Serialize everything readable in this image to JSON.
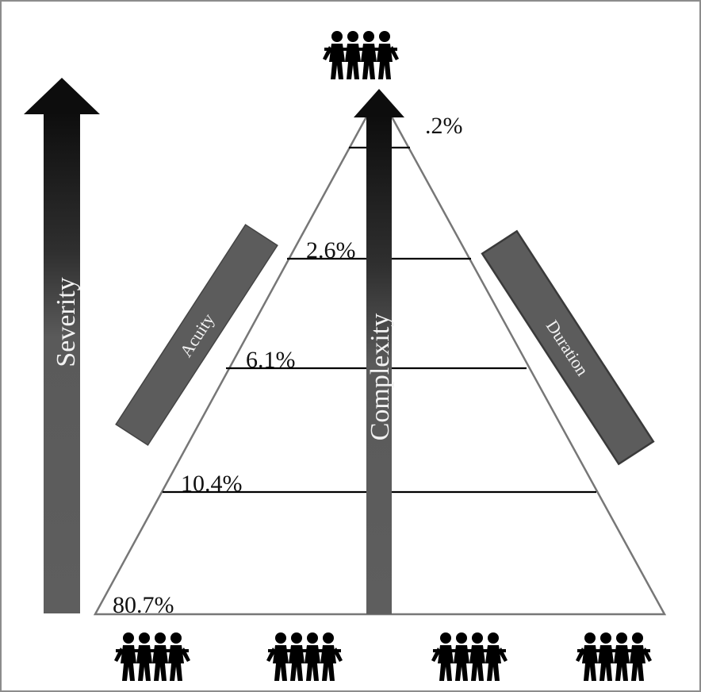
{
  "diagram": {
    "severity_label": "Severity",
    "complexity_label": "Complexity",
    "acuity_label": "Acuity",
    "duration_label": "Duration",
    "tiers": [
      ".2%",
      "2.6%",
      "6.1%",
      "10.4%",
      "80.7%"
    ],
    "colors": {
      "arrow_dark": "#111111",
      "arrow_mid": "#555555",
      "box_fill": "#5c5c5c",
      "triangle_stroke": "#777777",
      "people": "#000000"
    },
    "icons": {
      "people_group": "people-group-icon"
    }
  }
}
